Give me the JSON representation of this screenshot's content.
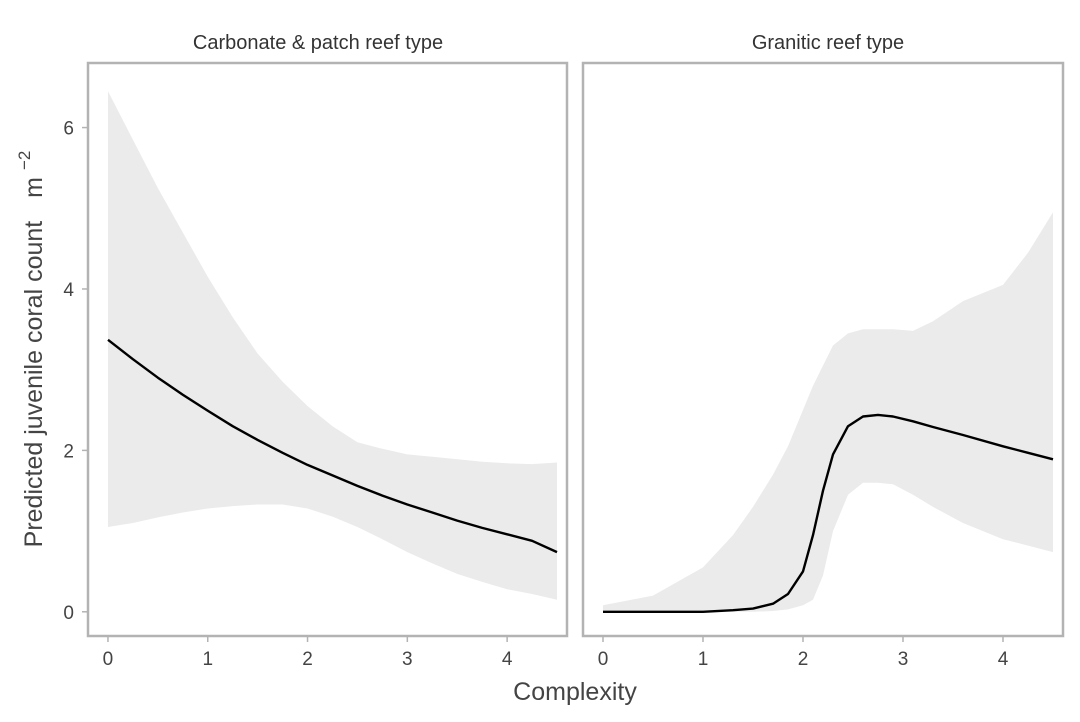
{
  "chart_data": {
    "type": "line",
    "xlabel": "Complexity",
    "ylabel": "Predicted juvenile coral count",
    "ylabel_unit_base": "m",
    "ylabel_unit_exp": "−2",
    "xlim": [
      -0.2,
      4.6
    ],
    "ylim": [
      -0.3,
      6.8
    ],
    "x_ticks": [
      0,
      1,
      2,
      3,
      4
    ],
    "y_ticks": [
      0,
      2,
      4,
      6
    ],
    "grid": false,
    "colors": {
      "line": "#000000",
      "band": "#ebebeb",
      "frame": "#b3b3b3"
    },
    "panels": [
      {
        "title": "Carbonate & patch reef type",
        "x": [
          0,
          0.25,
          0.5,
          0.75,
          1,
          1.25,
          1.5,
          1.75,
          2,
          2.25,
          2.5,
          2.75,
          3,
          3.25,
          3.5,
          3.75,
          4,
          4.25,
          4.5
        ],
        "fit": [
          3.37,
          3.13,
          2.9,
          2.69,
          2.49,
          2.3,
          2.13,
          1.97,
          1.82,
          1.69,
          1.56,
          1.44,
          1.33,
          1.23,
          1.13,
          1.04,
          0.96,
          0.88,
          0.74
        ],
        "upper": [
          6.45,
          5.85,
          5.25,
          4.7,
          4.15,
          3.65,
          3.2,
          2.85,
          2.55,
          2.3,
          2.1,
          2.02,
          1.95,
          1.92,
          1.89,
          1.86,
          1.84,
          1.83,
          1.85
        ],
        "lower": [
          1.05,
          1.1,
          1.17,
          1.23,
          1.28,
          1.31,
          1.33,
          1.33,
          1.28,
          1.18,
          1.05,
          0.9,
          0.74,
          0.6,
          0.47,
          0.37,
          0.28,
          0.22,
          0.15
        ]
      },
      {
        "title": "Granitic reef type",
        "x": [
          0,
          0.5,
          1,
          1.3,
          1.5,
          1.7,
          1.85,
          2,
          2.1,
          2.2,
          2.3,
          2.45,
          2.6,
          2.75,
          2.9,
          3.1,
          3.3,
          3.6,
          4,
          4.25,
          4.5
        ],
        "fit": [
          0.0,
          0.0,
          0.0,
          0.02,
          0.04,
          0.1,
          0.22,
          0.5,
          0.95,
          1.5,
          1.95,
          2.3,
          2.42,
          2.44,
          2.42,
          2.36,
          2.29,
          2.19,
          2.05,
          1.97,
          1.89
        ],
        "upper": [
          0.08,
          0.2,
          0.55,
          0.95,
          1.3,
          1.7,
          2.05,
          2.5,
          2.8,
          3.05,
          3.3,
          3.45,
          3.5,
          3.5,
          3.5,
          3.48,
          3.6,
          3.85,
          4.05,
          4.45,
          4.95
        ],
        "lower": [
          0.0,
          0.0,
          0.0,
          0.0,
          0.0,
          0.01,
          0.03,
          0.08,
          0.15,
          0.45,
          1.0,
          1.45,
          1.6,
          1.6,
          1.58,
          1.45,
          1.3,
          1.1,
          0.9,
          0.82,
          0.74
        ]
      }
    ]
  }
}
